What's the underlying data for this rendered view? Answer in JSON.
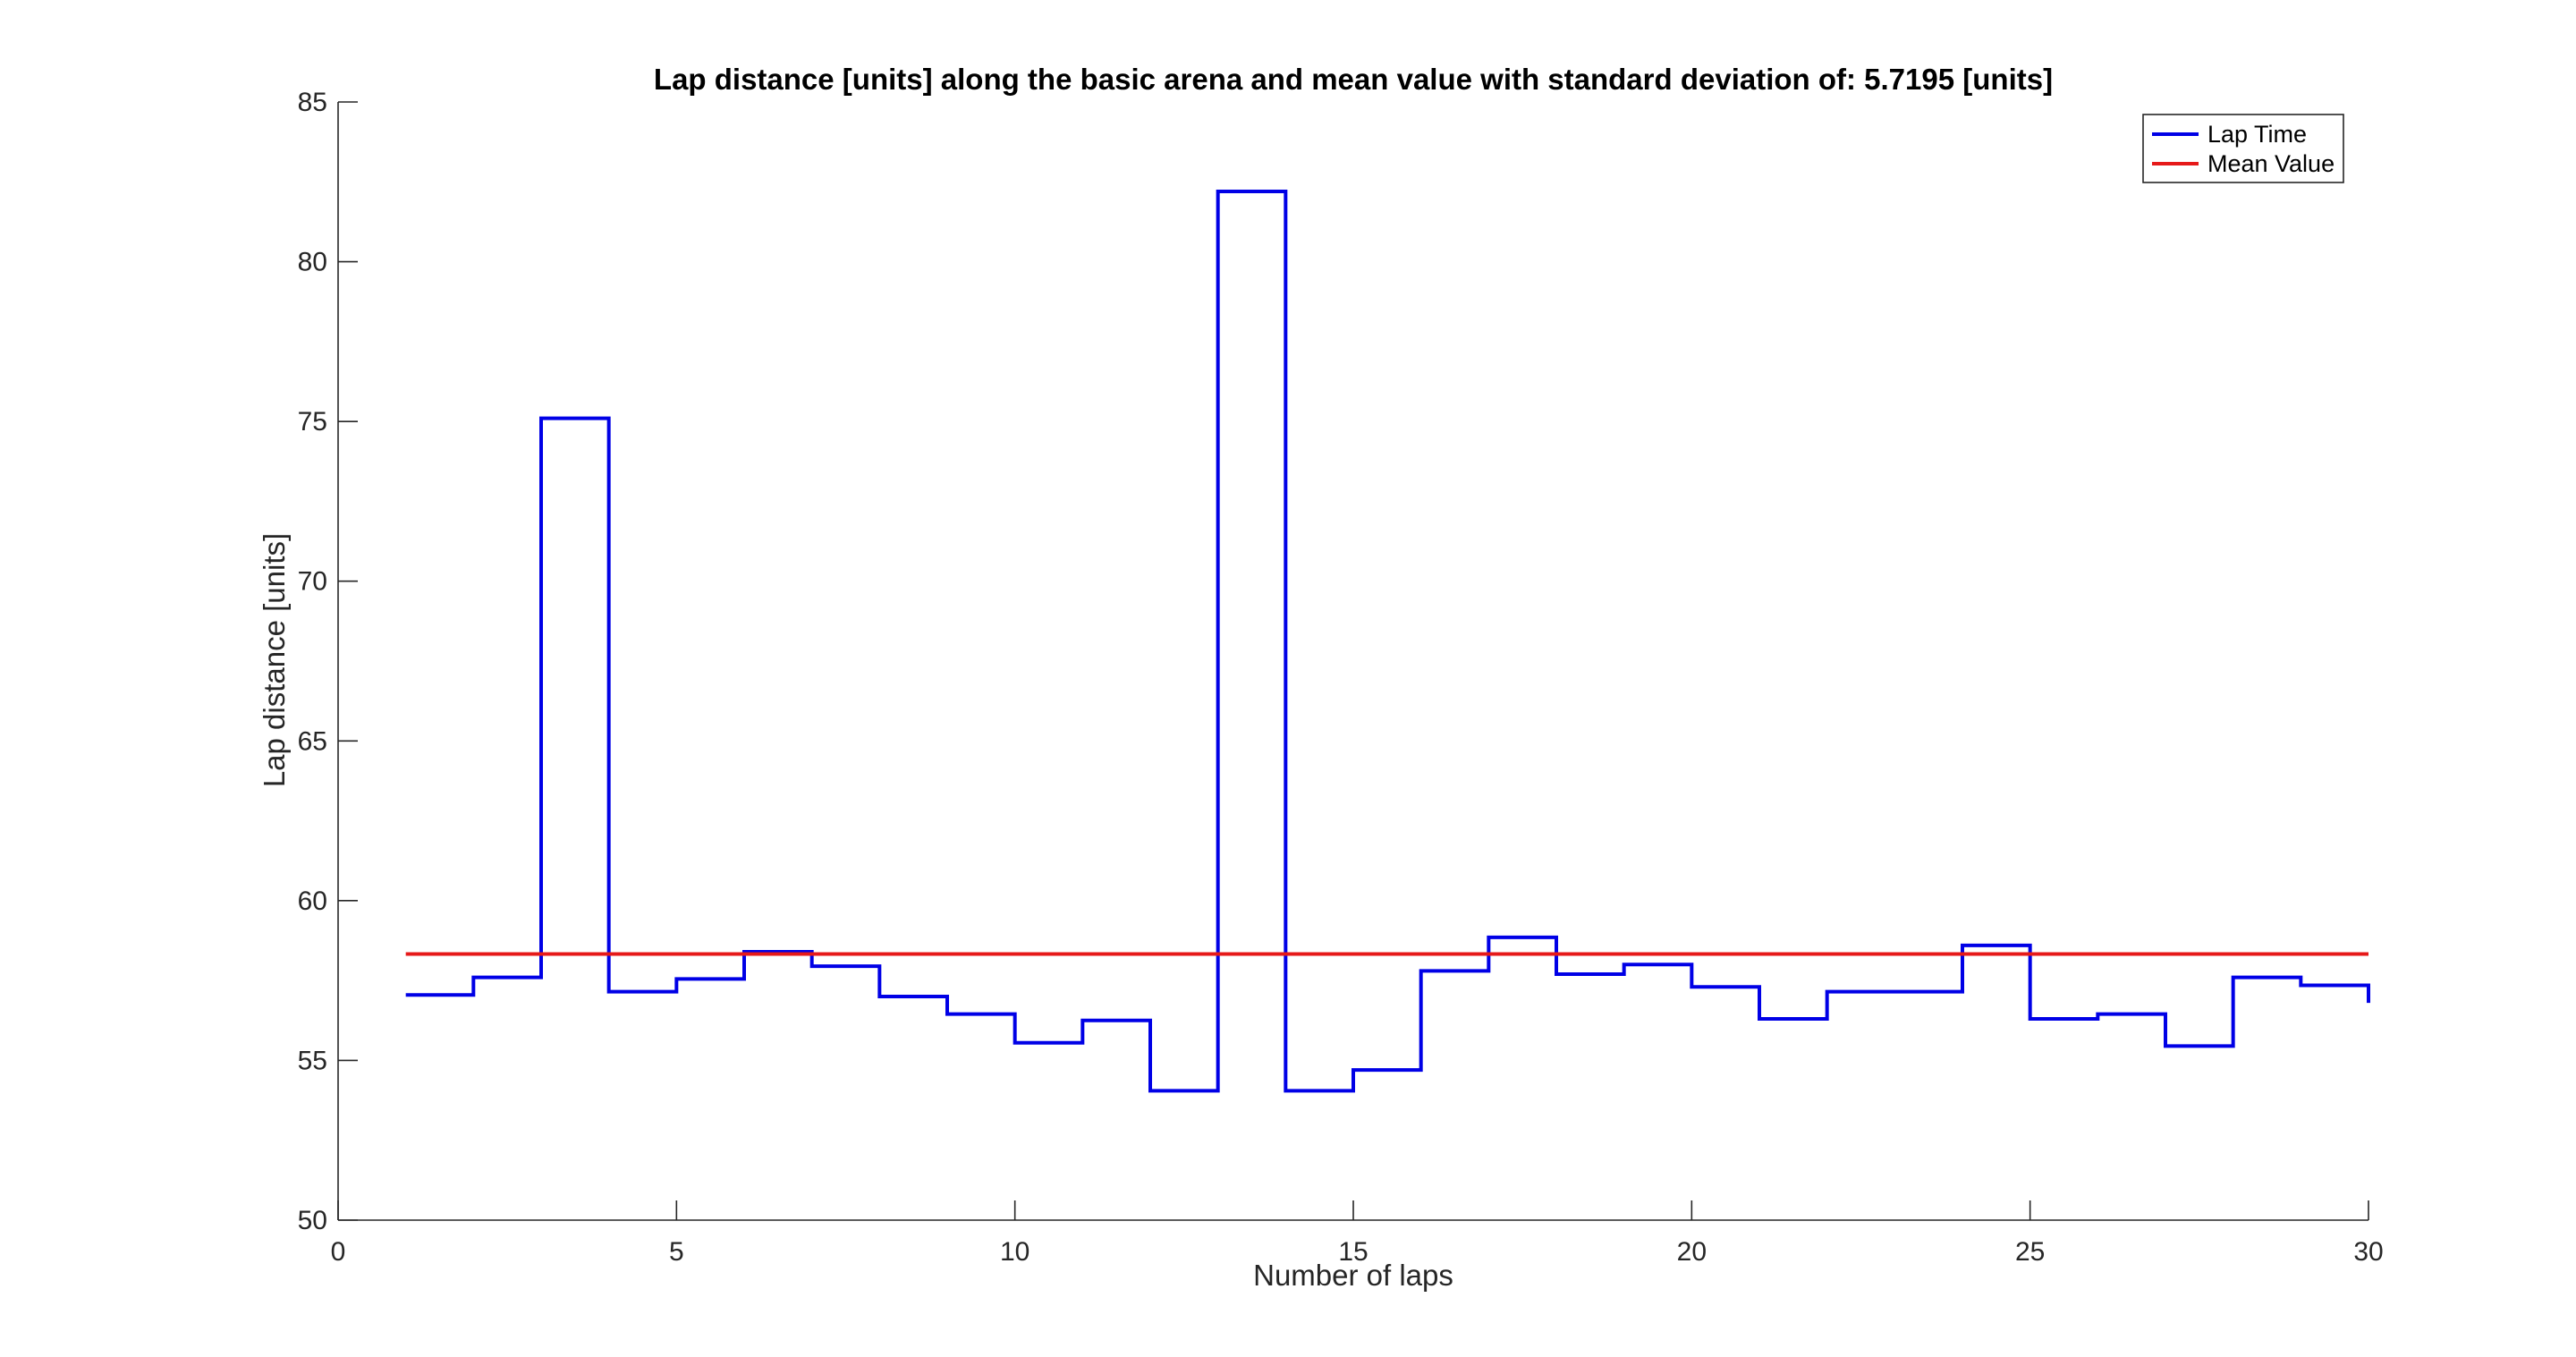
{
  "chart_data": {
    "type": "line",
    "step": true,
    "title": "Lap distance [units] along the basic arena and mean value with standard deviation of: 5.7195 [units]",
    "xlabel": "Number of laps",
    "ylabel": "Lap distance [units]",
    "xlim": [
      0,
      30
    ],
    "ylim": [
      50,
      85
    ],
    "xticks": [
      0,
      5,
      10,
      15,
      20,
      25,
      30
    ],
    "yticks": [
      50,
      55,
      60,
      65,
      70,
      75,
      80,
      85
    ],
    "grid": false,
    "legend_position": "top-right",
    "series": [
      {
        "name": "Lap Time",
        "color": "#0000e6",
        "x": [
          1,
          2,
          3,
          4,
          5,
          6,
          7,
          8,
          9,
          10,
          11,
          12,
          13,
          14,
          15,
          16,
          17,
          18,
          19,
          20,
          21,
          22,
          23,
          24,
          25,
          26,
          27,
          28,
          29,
          30
        ],
        "y": [
          57.05,
          57.6,
          75.1,
          57.15,
          57.55,
          58.4,
          57.95,
          57.0,
          56.45,
          55.55,
          56.25,
          54.05,
          82.2,
          54.05,
          54.7,
          57.8,
          58.85,
          57.7,
          58.0,
          57.3,
          56.3,
          57.15,
          57.15,
          58.6,
          56.3,
          56.45,
          55.45,
          57.6,
          57.35,
          56.8
        ]
      },
      {
        "name": "Mean Value",
        "color": "#e61919",
        "x": [
          1,
          30
        ],
        "y": [
          58.33,
          58.33
        ]
      }
    ]
  }
}
